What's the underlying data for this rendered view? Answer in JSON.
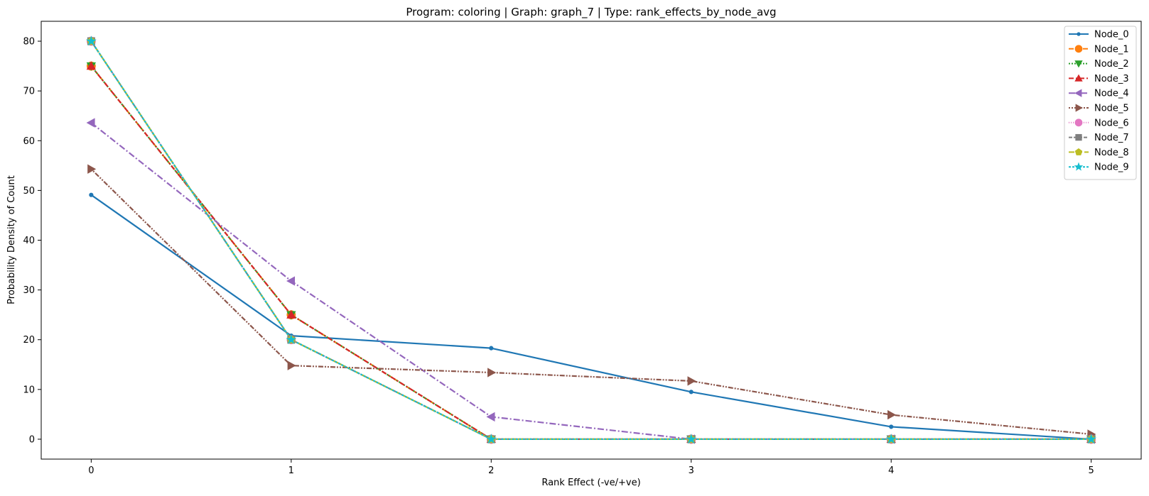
{
  "chart_data": {
    "type": "line",
    "title": "Program: coloring | Graph: graph_7 | Type: rank_effects_by_node_avg",
    "xlabel": "Rank Effect (-ve/+ve)",
    "ylabel": "Probability Density of Count",
    "x": [
      0,
      1,
      2,
      3,
      4,
      5
    ],
    "xlim": [
      -0.25,
      5.25
    ],
    "ylim": [
      -4,
      84
    ],
    "xticks": [
      0,
      1,
      2,
      3,
      4,
      5
    ],
    "yticks": [
      0,
      10,
      20,
      30,
      40,
      50,
      60,
      70,
      80
    ],
    "grid": false,
    "legend_position": "top-right",
    "series": [
      {
        "name": "Node_0",
        "color": "#1f77b4",
        "dash": "",
        "marker": "point",
        "values": [
          49.1,
          20.8,
          18.3,
          9.5,
          2.5,
          0
        ]
      },
      {
        "name": "Node_1",
        "color": "#ff7f0e",
        "dash": "7,3",
        "marker": "circle",
        "values": [
          75,
          25,
          0,
          0,
          0,
          0
        ]
      },
      {
        "name": "Node_2",
        "color": "#2ca02c",
        "dash": "2,2",
        "marker": "triangle-down",
        "values": [
          75,
          25,
          0,
          0,
          0,
          0
        ]
      },
      {
        "name": "Node_3",
        "color": "#d62728",
        "dash": "7,3,2,3",
        "marker": "triangle-up",
        "values": [
          75,
          25,
          0,
          0,
          0,
          0
        ]
      },
      {
        "name": "Node_4",
        "color": "#9467bd",
        "dash": "9,3,2,3",
        "marker": "triangle-left",
        "values": [
          63.6,
          31.8,
          4.5,
          0,
          0,
          0
        ]
      },
      {
        "name": "Node_5",
        "color": "#8c564b",
        "dash": "2,2,2,2,7,2",
        "marker": "triangle-right",
        "values": [
          54.3,
          14.8,
          13.4,
          11.7,
          4.9,
          1
        ]
      },
      {
        "name": "Node_6",
        "color": "#e377c2",
        "dash": "1,2",
        "marker": "circle",
        "values": [
          80,
          20,
          0,
          0,
          0,
          0
        ]
      },
      {
        "name": "Node_7",
        "color": "#7f7f7f",
        "dash": "5,2",
        "marker": "square",
        "values": [
          80,
          20,
          0,
          0,
          0,
          0
        ]
      },
      {
        "name": "Node_8",
        "color": "#bcbd22",
        "dash": "8,3",
        "marker": "pentagon",
        "values": [
          80,
          20,
          0,
          0,
          0,
          0
        ]
      },
      {
        "name": "Node_9",
        "color": "#17becf",
        "dash": "3,2",
        "marker": "star",
        "values": [
          80,
          20,
          0,
          0,
          0,
          0
        ]
      }
    ]
  }
}
